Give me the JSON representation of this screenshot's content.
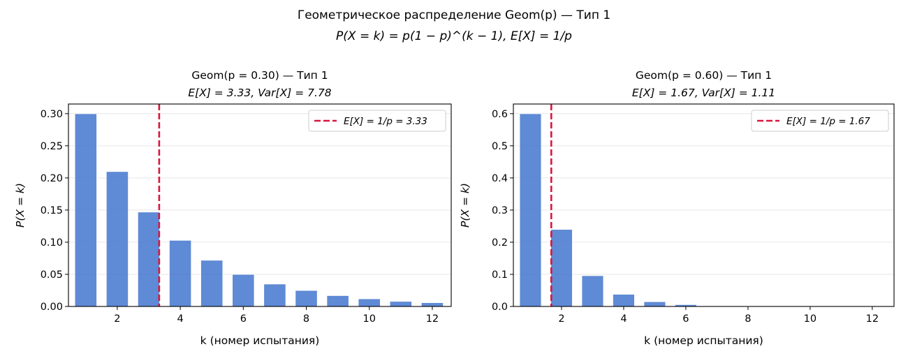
{
  "suptitle": {
    "line1": "Геометрическое распределение Geom(p) — Тип 1",
    "line2": "P(X = k) = p(1 − p)^(k − 1),  E[X] = 1/p"
  },
  "colors": {
    "bar": "#4a7bd0",
    "mean_line": "#dc143c"
  },
  "chart_data": [
    {
      "type": "bar",
      "title": "Geom(p = 0.30) — Тип 1",
      "subtitle": "E[X] = 3.33,  Var[X] = 7.78",
      "xlabel": "k (номер испытания)",
      "ylabel": "P(X = k)",
      "categories": [
        1,
        2,
        3,
        4,
        5,
        6,
        7,
        8,
        9,
        10,
        11,
        12
      ],
      "values": [
        0.3,
        0.21,
        0.147,
        0.103,
        0.072,
        0.05,
        0.035,
        0.025,
        0.017,
        0.012,
        0.008,
        0.006
      ],
      "xlim": [
        0.45,
        12.6
      ],
      "ylim": [
        0,
        0.315
      ],
      "xticks": [
        2,
        4,
        6,
        8,
        10,
        12
      ],
      "yticks": [
        0.0,
        0.05,
        0.1,
        0.15,
        0.2,
        0.25,
        0.3
      ],
      "ytick_labels": [
        "0.00",
        "0.05",
        "0.10",
        "0.15",
        "0.20",
        "0.25",
        "0.30"
      ],
      "mean": 3.33,
      "legend": "E[X] = 1/p = 3.33",
      "legend_position": "upper right",
      "grid": "y"
    },
    {
      "type": "bar",
      "title": "Geom(p = 0.60) — Тип 1",
      "subtitle": "E[X] = 1.67,  Var[X] = 1.11",
      "xlabel": "k (номер испытания)",
      "ylabel": "P(X = k)",
      "categories": [
        1,
        2,
        3,
        4,
        5,
        6,
        7,
        8,
        9,
        10,
        11,
        12
      ],
      "values": [
        0.6,
        0.24,
        0.096,
        0.038,
        0.015,
        0.006,
        0.002,
        0.001,
        0.0004,
        0.0002,
        0.0001,
        3e-05
      ],
      "xlim": [
        0.45,
        12.7
      ],
      "ylim": [
        0,
        0.63
      ],
      "xticks": [
        2,
        4,
        6,
        8,
        10,
        12
      ],
      "yticks": [
        0.0,
        0.1,
        0.2,
        0.3,
        0.4,
        0.5,
        0.6
      ],
      "ytick_labels": [
        "0.0",
        "0.1",
        "0.2",
        "0.3",
        "0.4",
        "0.5",
        "0.6"
      ],
      "mean": 1.67,
      "legend": "E[X] = 1/p = 1.67",
      "legend_position": "upper right",
      "grid": "y"
    }
  ]
}
